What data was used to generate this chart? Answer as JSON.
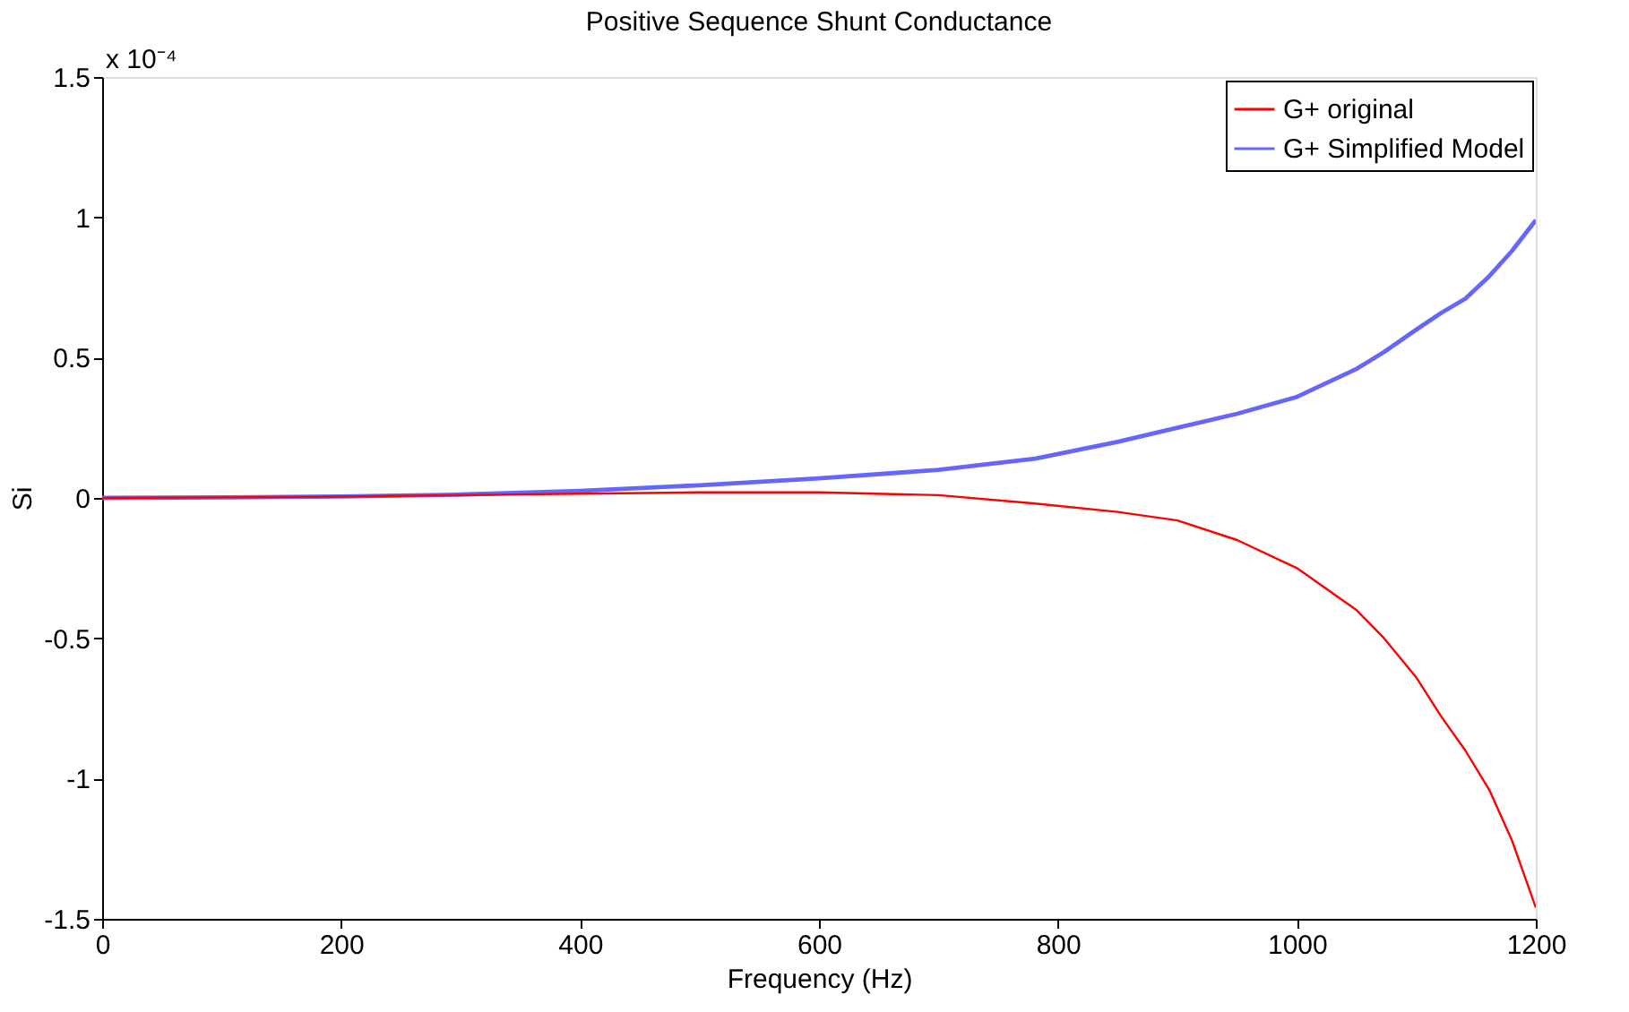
{
  "chart_data": {
    "type": "line",
    "title": "Positive Sequence Shunt Conductance",
    "xlabel": "Frequency (Hz)",
    "ylabel": "Si",
    "annotations": [
      "x 10⁻⁴"
    ],
    "x": [
      0,
      100,
      200,
      300,
      400,
      500,
      600,
      700,
      781,
      850,
      900,
      950,
      1000,
      1050,
      1073,
      1100,
      1121,
      1141,
      1161,
      1180,
      1200
    ],
    "series": [
      {
        "name": "G+ original",
        "color": "#ff0000",
        "values": [
          0,
          0.002,
          0.005,
          0.01,
          0.015,
          0.02,
          0.02,
          0.01,
          -0.02,
          -0.05,
          -0.08,
          -0.15,
          -0.25,
          -0.4,
          -0.5,
          -0.64,
          -0.78,
          -0.9,
          -1.04,
          -1.22,
          -1.46
        ]
      },
      {
        "name": "G+ Simplified Model",
        "color": "#6666ff",
        "values": [
          0,
          0.002,
          0.005,
          0.012,
          0.025,
          0.045,
          0.07,
          0.1,
          0.14,
          0.2,
          0.25,
          0.3,
          0.36,
          0.46,
          0.52,
          0.6,
          0.66,
          0.71,
          0.79,
          0.88,
          0.99
        ]
      }
    ],
    "xlim": [
      0,
      1200
    ],
    "xticks": [
      0,
      200,
      400,
      600,
      800,
      1000,
      1200
    ],
    "ylim": [
      -1.5,
      1.5
    ],
    "yticks": [
      -1.5,
      -1,
      -0.5,
      0,
      0.5,
      1,
      1.5
    ],
    "grid": false,
    "legend": "top right",
    "marker": "none",
    "line_style": "solid"
  }
}
